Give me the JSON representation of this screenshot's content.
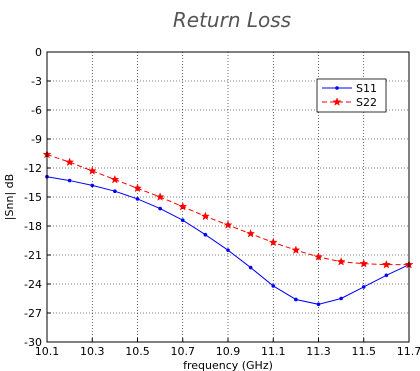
{
  "chart_data": {
    "type": "line",
    "title": "Return Loss",
    "xlabel": "frequency (GHz)",
    "ylabel": "|Snn| dB",
    "xlim": [
      10.1,
      11.7
    ],
    "ylim": [
      -30,
      0
    ],
    "xticks": [
      "10.1",
      "10.3",
      "10.5",
      "10.7",
      "10.9",
      "11.1",
      "11.3",
      "11.5",
      "11.7"
    ],
    "yticks": [
      "0",
      "-3",
      "-6",
      "-9",
      "-12",
      "-15",
      "-18",
      "-21",
      "-24",
      "-27",
      "-30"
    ],
    "grid": true,
    "legend_position": "top-right",
    "x": [
      10.1,
      10.2,
      10.3,
      10.4,
      10.5,
      10.6,
      10.7,
      10.8,
      10.9,
      11.0,
      11.1,
      11.2,
      11.3,
      11.4,
      11.5,
      11.6,
      11.7
    ],
    "series": [
      {
        "name": "S11",
        "color": "#0000ff",
        "marker": "dot",
        "line_style": "solid",
        "values": [
          -12.9,
          -13.3,
          -13.8,
          -14.4,
          -15.2,
          -16.2,
          -17.4,
          -18.9,
          -20.5,
          -22.3,
          -24.2,
          -25.6,
          -26.1,
          -25.5,
          -24.3,
          -23.1,
          -22.0
        ]
      },
      {
        "name": "S22",
        "color": "#ff0000",
        "marker": "star",
        "line_style": "dashed",
        "values": [
          -10.6,
          -11.4,
          -12.3,
          -13.2,
          -14.1,
          -15.0,
          -16.0,
          -17.0,
          -17.9,
          -18.8,
          -19.7,
          -20.5,
          -21.2,
          -21.7,
          -21.9,
          -22.0,
          -22.0
        ]
      }
    ]
  }
}
